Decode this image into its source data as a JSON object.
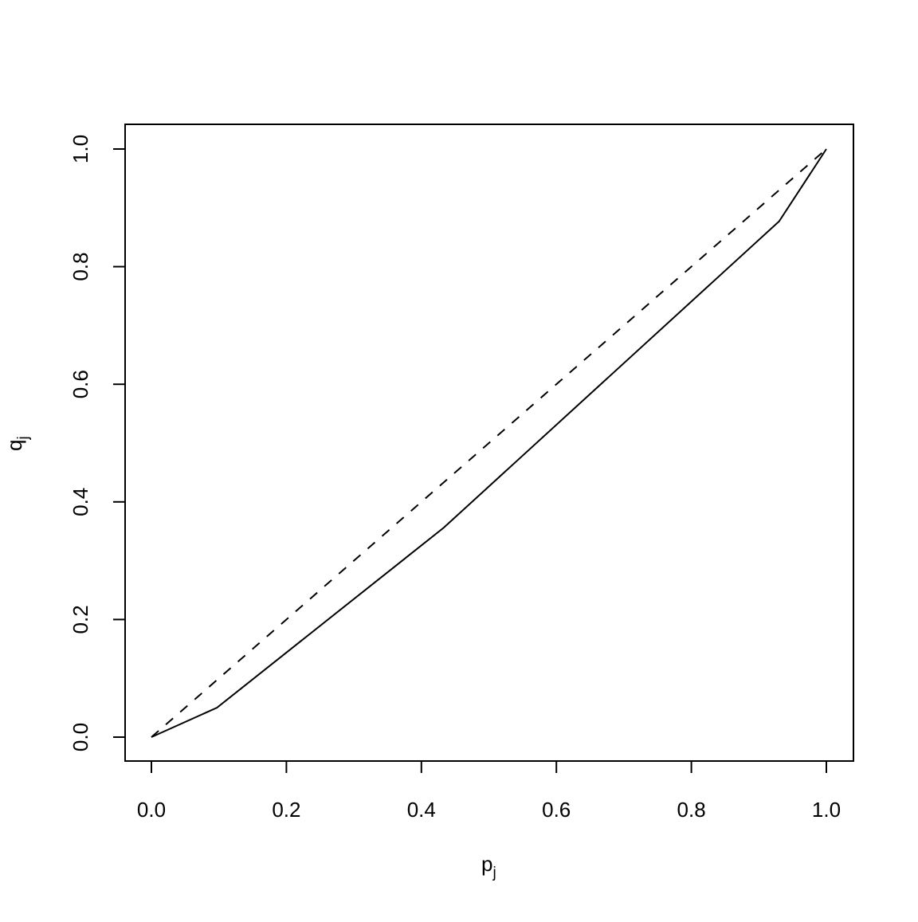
{
  "chart_data": {
    "type": "line",
    "title": "",
    "xlabel": "p",
    "xlabel_subscript": "j",
    "ylabel": "q",
    "ylabel_subscript": "j",
    "xlim": [
      0,
      1
    ],
    "ylim": [
      0,
      1
    ],
    "grid": false,
    "xticks": [
      "0.0",
      "0.2",
      "0.4",
      "0.6",
      "0.8",
      "1.0"
    ],
    "yticks": [
      "0.0",
      "0.2",
      "0.4",
      "0.6",
      "0.8",
      "1.0"
    ],
    "series": [
      {
        "style": "solid",
        "color": "#000000",
        "x": [
          0,
          0.097,
          0.433,
          0.93,
          1.0
        ],
        "y": [
          0,
          0.05,
          0.356,
          0.877,
          1.0
        ]
      },
      {
        "style": "dashed",
        "color": "#000000",
        "x": [
          0,
          1
        ],
        "y": [
          0,
          1
        ]
      }
    ]
  }
}
